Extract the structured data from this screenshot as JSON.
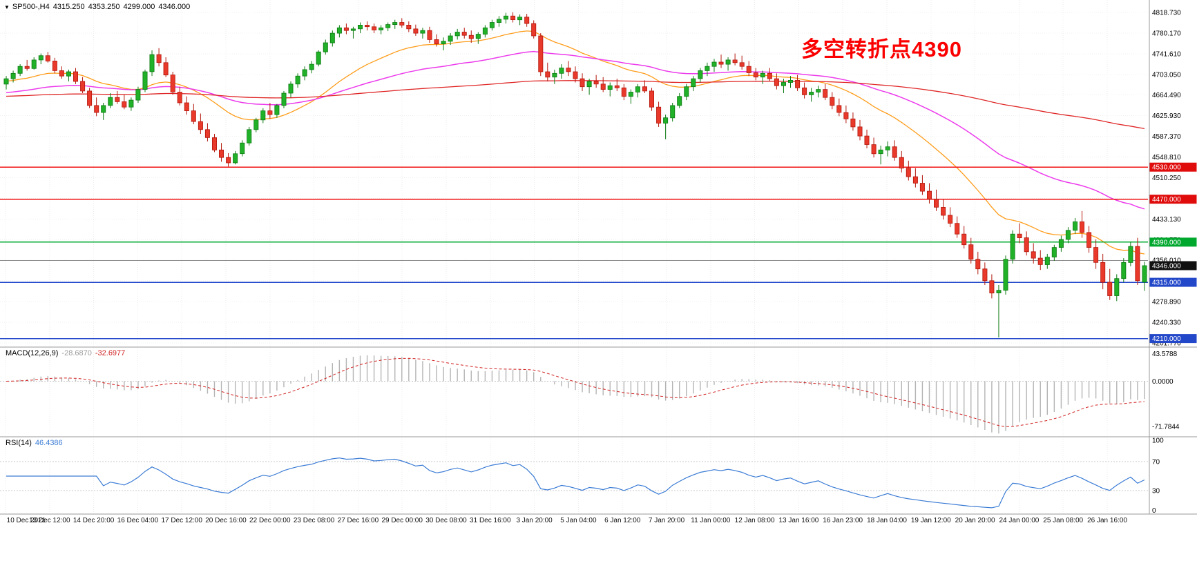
{
  "header": {
    "symbol_period": "SP500-,H4",
    "open": "4315.250",
    "high": "4353.250",
    "low": "4299.000",
    "close": "4346.000"
  },
  "annotation": {
    "text": "多空转折点4390",
    "color": "#fa0000"
  },
  "indicators": {
    "macd": {
      "label": "MACD(12,26,9)",
      "value_main": "-28.6870",
      "value_signal": "-32.6977",
      "scale": [
        {
          "v": 43.5788,
          "t": "43.5788"
        },
        {
          "v": 0,
          "t": "0.0000"
        },
        {
          "v": -71.7844,
          "t": "-71.7844"
        }
      ]
    },
    "rsi": {
      "label": "RSI(14)",
      "value": "46.4386",
      "levels": [
        70,
        30
      ],
      "scale": [
        {
          "v": 100,
          "t": "100"
        },
        {
          "v": 70,
          "t": "70"
        },
        {
          "v": 30,
          "t": "30"
        },
        {
          "v": 0,
          "t": "0"
        }
      ]
    }
  },
  "colors": {
    "up_fill": "#21b128",
    "up_stroke": "#0c7a12",
    "down_fill": "#e8392b",
    "down_stroke": "#b3170c",
    "macd_hist": "#b4b4b4",
    "macd_signal": "#d02020",
    "rsi_line": "#3a7bd5",
    "grid": "#ededed",
    "separator": "#9a9a9a"
  },
  "chart_data": {
    "type": "candlestick",
    "symbol": "SP500-",
    "timeframe": "H4",
    "ohlc_columns": [
      "open",
      "high",
      "low",
      "close"
    ],
    "ohlc": [
      [
        4685,
        4700,
        4675,
        4695
      ],
      [
        4695,
        4710,
        4688,
        4705
      ],
      [
        4705,
        4722,
        4700,
        4718
      ],
      [
        4718,
        4730,
        4710,
        4714
      ],
      [
        4714,
        4735,
        4712,
        4730
      ],
      [
        4730,
        4742,
        4722,
        4738
      ],
      [
        4738,
        4745,
        4725,
        4728
      ],
      [
        4728,
        4734,
        4705,
        4710
      ],
      [
        4710,
        4718,
        4695,
        4700
      ],
      [
        4700,
        4712,
        4690,
        4708
      ],
      [
        4708,
        4715,
        4685,
        4690
      ],
      [
        4690,
        4698,
        4668,
        4672
      ],
      [
        4672,
        4678,
        4640,
        4645
      ],
      [
        4645,
        4660,
        4625,
        4632
      ],
      [
        4632,
        4650,
        4618,
        4645
      ],
      [
        4645,
        4668,
        4640,
        4660
      ],
      [
        4660,
        4672,
        4648,
        4652
      ],
      [
        4652,
        4665,
        4638,
        4642
      ],
      [
        4642,
        4660,
        4635,
        4655
      ],
      [
        4655,
        4680,
        4650,
        4675
      ],
      [
        4675,
        4712,
        4670,
        4708
      ],
      [
        4708,
        4748,
        4700,
        4740
      ],
      [
        4740,
        4752,
        4718,
        4725
      ],
      [
        4725,
        4735,
        4698,
        4702
      ],
      [
        4702,
        4708,
        4665,
        4670
      ],
      [
        4670,
        4680,
        4645,
        4650
      ],
      [
        4650,
        4662,
        4628,
        4635
      ],
      [
        4635,
        4648,
        4610,
        4615
      ],
      [
        4615,
        4630,
        4592,
        4600
      ],
      [
        4600,
        4612,
        4578,
        4585
      ],
      [
        4585,
        4592,
        4558,
        4562
      ],
      [
        4562,
        4575,
        4540,
        4548
      ],
      [
        4548,
        4556,
        4531,
        4538
      ],
      [
        4538,
        4560,
        4535,
        4555
      ],
      [
        4555,
        4580,
        4550,
        4575
      ],
      [
        4575,
        4605,
        4570,
        4600
      ],
      [
        4600,
        4622,
        4595,
        4618
      ],
      [
        4618,
        4640,
        4612,
        4635
      ],
      [
        4635,
        4650,
        4620,
        4628
      ],
      [
        4628,
        4648,
        4622,
        4645
      ],
      [
        4645,
        4672,
        4640,
        4668
      ],
      [
        4668,
        4690,
        4660,
        4685
      ],
      [
        4685,
        4705,
        4678,
        4700
      ],
      [
        4700,
        4718,
        4692,
        4712
      ],
      [
        4712,
        4728,
        4705,
        4722
      ],
      [
        4722,
        4748,
        4718,
        4745
      ],
      [
        4745,
        4768,
        4740,
        4762
      ],
      [
        4762,
        4785,
        4755,
        4780
      ],
      [
        4780,
        4795,
        4772,
        4790
      ],
      [
        4790,
        4798,
        4778,
        4785
      ],
      [
        4785,
        4792,
        4770,
        4788
      ],
      [
        4788,
        4800,
        4780,
        4795
      ],
      [
        4795,
        4802,
        4785,
        4792
      ],
      [
        4792,
        4798,
        4780,
        4786
      ],
      [
        4786,
        4795,
        4778,
        4790
      ],
      [
        4790,
        4800,
        4784,
        4796
      ],
      [
        4796,
        4805,
        4788,
        4800
      ],
      [
        4800,
        4808,
        4790,
        4795
      ],
      [
        4795,
        4802,
        4782,
        4788
      ],
      [
        4788,
        4796,
        4775,
        4780
      ],
      [
        4780,
        4790,
        4770,
        4785
      ],
      [
        4785,
        4792,
        4762,
        4768
      ],
      [
        4768,
        4778,
        4755,
        4760
      ],
      [
        4760,
        4772,
        4748,
        4765
      ],
      [
        4765,
        4780,
        4758,
        4775
      ],
      [
        4775,
        4788,
        4768,
        4782
      ],
      [
        4782,
        4790,
        4770,
        4776
      ],
      [
        4776,
        4785,
        4762,
        4770
      ],
      [
        4770,
        4782,
        4760,
        4778
      ],
      [
        4778,
        4795,
        4772,
        4790
      ],
      [
        4790,
        4805,
        4785,
        4800
      ],
      [
        4800,
        4812,
        4792,
        4806
      ],
      [
        4806,
        4818,
        4798,
        4812
      ],
      [
        4812,
        4819,
        4800,
        4805
      ],
      [
        4805,
        4815,
        4795,
        4810
      ],
      [
        4810,
        4816,
        4792,
        4798
      ],
      [
        4798,
        4804,
        4770,
        4775
      ],
      [
        4775,
        4780,
        4700,
        4708
      ],
      [
        4708,
        4725,
        4690,
        4698
      ],
      [
        4698,
        4712,
        4685,
        4705
      ],
      [
        4705,
        4722,
        4695,
        4715
      ],
      [
        4715,
        4728,
        4700,
        4708
      ],
      [
        4708,
        4718,
        4688,
        4695
      ],
      [
        4695,
        4705,
        4672,
        4680
      ],
      [
        4680,
        4695,
        4665,
        4690
      ],
      [
        4690,
        4702,
        4678,
        4685
      ],
      [
        4685,
        4698,
        4670,
        4675
      ],
      [
        4675,
        4688,
        4662,
        4682
      ],
      [
        4682,
        4695,
        4672,
        4678
      ],
      [
        4678,
        4685,
        4655,
        4662
      ],
      [
        4662,
        4675,
        4648,
        4670
      ],
      [
        4670,
        4685,
        4660,
        4680
      ],
      [
        4680,
        4692,
        4668,
        4672
      ],
      [
        4672,
        4678,
        4635,
        4642
      ],
      [
        4642,
        4652,
        4605,
        4612
      ],
      [
        4612,
        4628,
        4582,
        4622
      ],
      [
        4622,
        4650,
        4615,
        4645
      ],
      [
        4645,
        4668,
        4640,
        4662
      ],
      [
        4662,
        4685,
        4655,
        4680
      ],
      [
        4680,
        4700,
        4672,
        4695
      ],
      [
        4695,
        4715,
        4688,
        4710
      ],
      [
        4710,
        4725,
        4700,
        4718
      ],
      [
        4718,
        4732,
        4708,
        4726
      ],
      [
        4726,
        4740,
        4715,
        4722
      ],
      [
        4722,
        4735,
        4710,
        4730
      ],
      [
        4730,
        4742,
        4720,
        4725
      ],
      [
        4725,
        4738,
        4712,
        4718
      ],
      [
        4718,
        4728,
        4700,
        4706
      ],
      [
        4706,
        4715,
        4692,
        4698
      ],
      [
        4698,
        4710,
        4685,
        4705
      ],
      [
        4705,
        4715,
        4690,
        4695
      ],
      [
        4695,
        4705,
        4675,
        4682
      ],
      [
        4682,
        4695,
        4668,
        4688
      ],
      [
        4688,
        4700,
        4678,
        4692
      ],
      [
        4692,
        4702,
        4672,
        4678
      ],
      [
        4678,
        4688,
        4658,
        4665
      ],
      [
        4665,
        4678,
        4652,
        4670
      ],
      [
        4670,
        4682,
        4660,
        4675
      ],
      [
        4675,
        4685,
        4655,
        4660
      ],
      [
        4660,
        4670,
        4638,
        4645
      ],
      [
        4645,
        4658,
        4625,
        4632
      ],
      [
        4632,
        4645,
        4612,
        4620
      ],
      [
        4620,
        4632,
        4598,
        4605
      ],
      [
        4605,
        4618,
        4580,
        4588
      ],
      [
        4588,
        4600,
        4565,
        4572
      ],
      [
        4572,
        4585,
        4548,
        4555
      ],
      [
        4555,
        4570,
        4535,
        4562
      ],
      [
        4562,
        4578,
        4550,
        4568
      ],
      [
        4568,
        4580,
        4542,
        4548
      ],
      [
        4548,
        4560,
        4520,
        4528
      ],
      [
        4528,
        4542,
        4505,
        4512
      ],
      [
        4512,
        4528,
        4492,
        4500
      ],
      [
        4500,
        4515,
        4478,
        4485
      ],
      [
        4485,
        4500,
        4462,
        4470
      ],
      [
        4470,
        4488,
        4448,
        4455
      ],
      [
        4455,
        4470,
        4432,
        4440
      ],
      [
        4440,
        4455,
        4418,
        4425
      ],
      [
        4425,
        4438,
        4398,
        4405
      ],
      [
        4405,
        4420,
        4378,
        4385
      ],
      [
        4385,
        4398,
        4350,
        4358
      ],
      [
        4358,
        4372,
        4330,
        4340
      ],
      [
        4340,
        4352,
        4310,
        4318
      ],
      [
        4318,
        4330,
        4285,
        4295
      ],
      [
        4295,
        4310,
        4212,
        4300
      ],
      [
        4300,
        4365,
        4292,
        4358
      ],
      [
        4358,
        4412,
        4350,
        4405
      ],
      [
        4405,
        4425,
        4388,
        4398
      ],
      [
        4398,
        4410,
        4365,
        4372
      ],
      [
        4372,
        4388,
        4350,
        4360
      ],
      [
        4360,
        4375,
        4338,
        4348
      ],
      [
        4348,
        4368,
        4340,
        4362
      ],
      [
        4362,
        4385,
        4355,
        4380
      ],
      [
        4380,
        4402,
        4372,
        4395
      ],
      [
        4395,
        4418,
        4388,
        4412
      ],
      [
        4412,
        4435,
        4405,
        4428
      ],
      [
        4428,
        4448,
        4398,
        4408
      ],
      [
        4408,
        4420,
        4370,
        4380
      ],
      [
        4380,
        4395,
        4340,
        4352
      ],
      [
        4352,
        4368,
        4302,
        4315
      ],
      [
        4315,
        4340,
        4282,
        4290
      ],
      [
        4290,
        4330,
        4280,
        4322
      ],
      [
        4322,
        4360,
        4315,
        4352
      ],
      [
        4352,
        4390,
        4345,
        4382
      ],
      [
        4382,
        4398,
        4310,
        4318
      ],
      [
        4315.25,
        4353.25,
        4299,
        4346
      ]
    ],
    "moving_averages": [
      {
        "name": "ma-fast",
        "period": 21,
        "seed": 4690,
        "color": "#ff9c19",
        "width": 1.3
      },
      {
        "name": "ma-medium",
        "period": 55,
        "seed": 4668,
        "color": "#ec3bec",
        "width": 1.5
      },
      {
        "name": "ma-slow",
        "period": 233,
        "seed": 4662,
        "color": "#e02626",
        "width": 1.3
      }
    ],
    "horizontal_lines": [
      {
        "price": 4530,
        "label": "4530.000",
        "color": "#f10f0f",
        "bg": "#e00b0b",
        "w": 1.5
      },
      {
        "price": 4470,
        "label": "4470.000",
        "color": "#f10f0f",
        "bg": "#e00b0b",
        "w": 1.5
      },
      {
        "price": 4390,
        "label": "4390.000",
        "color": "#00a82e",
        "bg": "#00a82e",
        "w": 1.5
      },
      {
        "price": 4356,
        "label": null,
        "color": "#8c8c8c",
        "bg": null,
        "w": 1
      },
      {
        "price": 4315,
        "label": "4315.000",
        "color": "#2247c9",
        "bg": "#2247c9",
        "w": 1.6
      },
      {
        "price": 4210,
        "label": "4210.000",
        "color": "#2247c9",
        "bg": "#2247c9",
        "w": 1.6
      }
    ],
    "current_price": {
      "price": 4346,
      "label": "4346.000",
      "bg": "#111111"
    },
    "price_axis_ticks": [
      4818.73,
      4780.17,
      4741.61,
      4703.05,
      4664.49,
      4625.93,
      4587.37,
      4548.81,
      4510.25,
      4471.69,
      4433.13,
      4394.57,
      4356.01,
      4317.45,
      4278.89,
      4240.33,
      4201.77
    ],
    "time_labels": [
      "10 Dec 2021",
      "13 Dec 12:00",
      "14 Dec 20:00",
      "16 Dec 04:00",
      "17 Dec 12:00",
      "20 Dec 16:00",
      "22 Dec 00:00",
      "23 Dec 08:00",
      "27 Dec 16:00",
      "29 Dec 00:00",
      "30 Dec 08:00",
      "31 Dec 16:00",
      "3 Jan 20:00",
      "5 Jan 04:00",
      "6 Jan 12:00",
      "7 Jan 20:00",
      "11 Jan 00:00",
      "12 Jan 08:00",
      "13 Jan 16:00",
      "16 Jan 23:00",
      "18 Jan 04:00",
      "19 Jan 12:00",
      "20 Jan 20:00",
      "24 Jan 00:00",
      "25 Jan 08:00",
      "26 Jan 16:00"
    ],
    "sub_charts": [
      {
        "type": "macd",
        "label": "MACD(12,26,9)",
        "main_value": -28.687,
        "signal_value": -32.6977,
        "scale_max": 43.5788,
        "scale_min": -71.7844
      },
      {
        "type": "rsi",
        "label": "RSI(14)",
        "value": 46.4386,
        "levels": [
          70,
          30
        ],
        "range": [
          0,
          100
        ]
      }
    ]
  }
}
